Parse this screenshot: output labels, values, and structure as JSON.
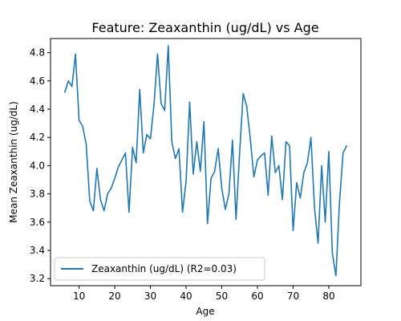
{
  "chart_data": {
    "type": "line",
    "title": "Feature: Zeaxanthin (ug/dL) vs Age",
    "xlabel": "Age",
    "ylabel": "Mean Zeaxanthin (ug/dL)",
    "xlim": [
      2,
      89
    ],
    "ylim": [
      3.15,
      4.9
    ],
    "xticks": [
      10,
      20,
      30,
      40,
      50,
      60,
      70,
      80
    ],
    "yticks": [
      3.2,
      3.4,
      3.6,
      3.8,
      4.0,
      4.2,
      4.4,
      4.6,
      4.8
    ],
    "ytick_labels": [
      "3.2",
      "3.4",
      "3.6",
      "3.8",
      "4.0",
      "4.2",
      "4.4",
      "4.6",
      "4.8"
    ],
    "grid": false,
    "legend_position": "lower-left",
    "series": [
      {
        "name": "Zeaxanthin (ug/dL) (R2=0.03)",
        "color": "#1f77b4",
        "x": [
          6,
          7,
          8,
          9,
          10,
          11,
          12,
          13,
          14,
          15,
          16,
          17,
          18,
          19,
          20,
          21,
          22,
          23,
          24,
          25,
          26,
          27,
          28,
          29,
          30,
          31,
          32,
          33,
          34,
          35,
          36,
          37,
          38,
          39,
          40,
          41,
          42,
          43,
          44,
          45,
          46,
          47,
          48,
          49,
          50,
          51,
          52,
          53,
          54,
          55,
          56,
          57,
          58,
          59,
          60,
          61,
          62,
          63,
          64,
          65,
          66,
          67,
          68,
          69,
          70,
          71,
          72,
          73,
          74,
          75,
          76,
          77,
          78,
          79,
          80,
          81,
          82,
          83,
          84,
          85
        ],
        "y": [
          4.52,
          4.6,
          4.56,
          4.79,
          4.32,
          4.28,
          4.15,
          3.75,
          3.68,
          3.98,
          3.76,
          3.68,
          3.8,
          3.84,
          3.91,
          3.99,
          4.04,
          4.09,
          3.67,
          4.13,
          4.02,
          4.54,
          4.09,
          4.22,
          4.19,
          4.43,
          4.79,
          4.44,
          4.39,
          4.85,
          4.17,
          4.05,
          4.12,
          3.67,
          3.89,
          4.45,
          3.94,
          4.17,
          3.96,
          4.31,
          3.59,
          3.91,
          3.96,
          4.12,
          3.84,
          3.69,
          3.8,
          4.18,
          3.62,
          4.09,
          4.51,
          4.42,
          4.19,
          3.92,
          4.04,
          4.07,
          4.09,
          3.79,
          4.21,
          3.95,
          4.0,
          3.76,
          4.17,
          4.14,
          3.54,
          3.88,
          3.77,
          3.95,
          4.02,
          4.2,
          3.7,
          3.45,
          4.0,
          3.6,
          4.1,
          3.38,
          3.22,
          3.74,
          4.09,
          4.14
        ]
      }
    ]
  }
}
